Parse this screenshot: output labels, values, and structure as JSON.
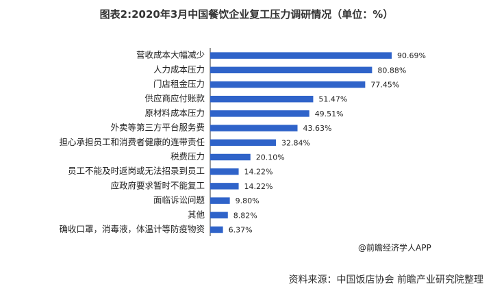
{
  "chart_data": {
    "type": "bar",
    "orientation": "horizontal",
    "title": "图表2:2020年3月中国餐饮企业复工压力调研情况（单位：%）",
    "categories": [
      "营收成本大幅减少",
      "人力成本压力",
      "门店租金压力",
      "供应商应付账款",
      "原材料成本压力",
      "外卖等第三方平台服务费",
      "担心承担员工和消费者健康的连带责任",
      "税费压力",
      "员工不能及时返岗或无法招录到员工",
      "应政府要求暂时不能复工",
      "面临诉讼问题",
      "其他",
      "确收口罩，消毒液，体温计等防疫物资"
    ],
    "values": [
      90.69,
      80.88,
      77.45,
      51.47,
      49.51,
      43.63,
      32.84,
      20.1,
      14.22,
      14.22,
      9.8,
      8.82,
      6.37
    ],
    "value_labels": [
      "90.69%",
      "80.88%",
      "77.45%",
      "51.47%",
      "49.51%",
      "43.63%",
      "32.84%",
      "20.10%",
      "14.22%",
      "14.22%",
      "9.80%",
      "8.82%",
      "6.37%"
    ],
    "xlim": [
      0,
      100
    ],
    "bar_color": "#2f63c9",
    "grid": false
  },
  "credit": "@前瞻经济学人APP",
  "source": "资料来源：中国饭店协会 前瞻产业研究院整理"
}
